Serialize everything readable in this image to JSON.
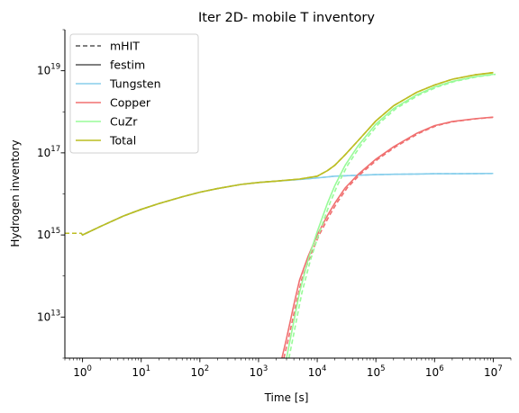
{
  "chart_data": {
    "type": "line",
    "title": "Iter 2D- mobile T inventory",
    "xlabel": "Time [s]",
    "ylabel": "Hydrogen inventory",
    "xscale": "log",
    "yscale": "log",
    "xlim": [
      0.5,
      20000000.0
    ],
    "ylim": [
      1000000000000.0,
      1e+20
    ],
    "xticks": [
      {
        "value": 1,
        "base": "10",
        "exp": "0"
      },
      {
        "value": 10,
        "base": "10",
        "exp": "1"
      },
      {
        "value": 100,
        "base": "10",
        "exp": "2"
      },
      {
        "value": 1000,
        "base": "10",
        "exp": "3"
      },
      {
        "value": 10000,
        "base": "10",
        "exp": "4"
      },
      {
        "value": 100000,
        "base": "10",
        "exp": "5"
      },
      {
        "value": 1000000,
        "base": "10",
        "exp": "6"
      },
      {
        "value": 10000000,
        "base": "10",
        "exp": "7"
      }
    ],
    "yticks": [
      {
        "value": 10000000000000.0,
        "base": "10",
        "exp": "13"
      },
      {
        "value": 1000000000000000.0,
        "base": "10",
        "exp": "15"
      },
      {
        "value": 1e+17,
        "base": "10",
        "exp": "17"
      },
      {
        "value": 1e+19,
        "base": "10",
        "exp": "19"
      }
    ],
    "grid": false,
    "legend_position": "top-left",
    "legend_style_entries": [
      {
        "label": "mHIT",
        "color": "#555555",
        "dash": "dashed"
      },
      {
        "label": "festim",
        "color": "#555555",
        "dash": "solid"
      }
    ],
    "series": [
      {
        "name": "Tungsten",
        "color": "#87ceeb",
        "x": [
          1,
          2,
          5,
          10,
          20,
          50,
          100,
          200,
          500,
          1000,
          2000,
          5000,
          10000,
          20000,
          50000,
          100000,
          200000,
          500000,
          1000000,
          2000000,
          5000000,
          10000000
        ],
        "y": [
          1000000000000000.0,
          1600000000000000.0,
          2900000000000000.0,
          4200000000000000.0,
          5800000000000000.0,
          8500000000000000.0,
          1.1e+16,
          1.35e+16,
          1.7e+16,
          1.9e+16,
          2.05e+16,
          2.25e+16,
          2.45e+16,
          2.7e+16,
          2.85e+16,
          2.95e+16,
          3e+16,
          3.05e+16,
          3.1e+16,
          3.1e+16,
          3.12e+16,
          3.15e+16
        ]
      },
      {
        "name": "Copper",
        "color": "#f07070",
        "x": [
          2500,
          3000,
          4000,
          5000,
          7000,
          10000,
          15000,
          20000,
          30000,
          50000,
          100000,
          200000,
          500000,
          1000000,
          2000000,
          5000000,
          10000000
        ],
        "y": [
          1000000000000.0,
          3000000000000.0,
          20000000000000.0,
          80000000000000.0,
          300000000000000.0,
          1000000000000000.0,
          3000000000000000.0,
          6000000000000000.0,
          1.4e+16,
          3e+16,
          7e+16,
          1.4e+17,
          3e+17,
          4.6e+17,
          5.8e+17,
          6.8e+17,
          7.4e+17
        ]
      },
      {
        "name": "CuZr",
        "color": "#98fb98",
        "x": [
          3000,
          4000,
          5000,
          7000,
          10000,
          15000,
          20000,
          30000,
          50000,
          100000,
          200000,
          500000,
          1000000,
          2000000,
          5000000,
          10000000
        ],
        "y": [
          1000000000000.0,
          8000000000000.0,
          40000000000000.0,
          250000000000000.0,
          1200000000000000.0,
          6000000000000000.0,
          1.6e+16,
          5e+16,
          1.5e+17,
          5e+17,
          1.2e+18,
          2.6e+18,
          4e+18,
          5.5e+18,
          7.2e+18,
          8.2e+18
        ]
      },
      {
        "name": "Total",
        "color": "#bcbd22",
        "x": [
          1,
          2,
          5,
          10,
          20,
          50,
          100,
          200,
          500,
          1000,
          2000,
          5000,
          10000,
          15000,
          20000,
          30000,
          50000,
          100000,
          200000,
          500000,
          1000000,
          2000000,
          5000000,
          10000000
        ],
        "y": [
          1000000000000000.0,
          1600000000000000.0,
          2900000000000000.0,
          4200000000000000.0,
          5800000000000000.0,
          8500000000000000.0,
          1.1e+16,
          1.35e+16,
          1.7e+16,
          1.9e+16,
          2.05e+16,
          2.3e+16,
          2.7e+16,
          3.7e+16,
          5e+16,
          9e+16,
          2e+17,
          6e+17,
          1.4e+18,
          3e+18,
          4.5e+18,
          6.2e+18,
          8e+18,
          9e+18
        ]
      }
    ],
    "mhit_offsets": {
      "Copper_x_factor": 1.08,
      "CuZr_x_factor": 1.1,
      "Total_initial_flat": {
        "x_start": 0.5,
        "y": 1100000000000000.0
      }
    }
  }
}
